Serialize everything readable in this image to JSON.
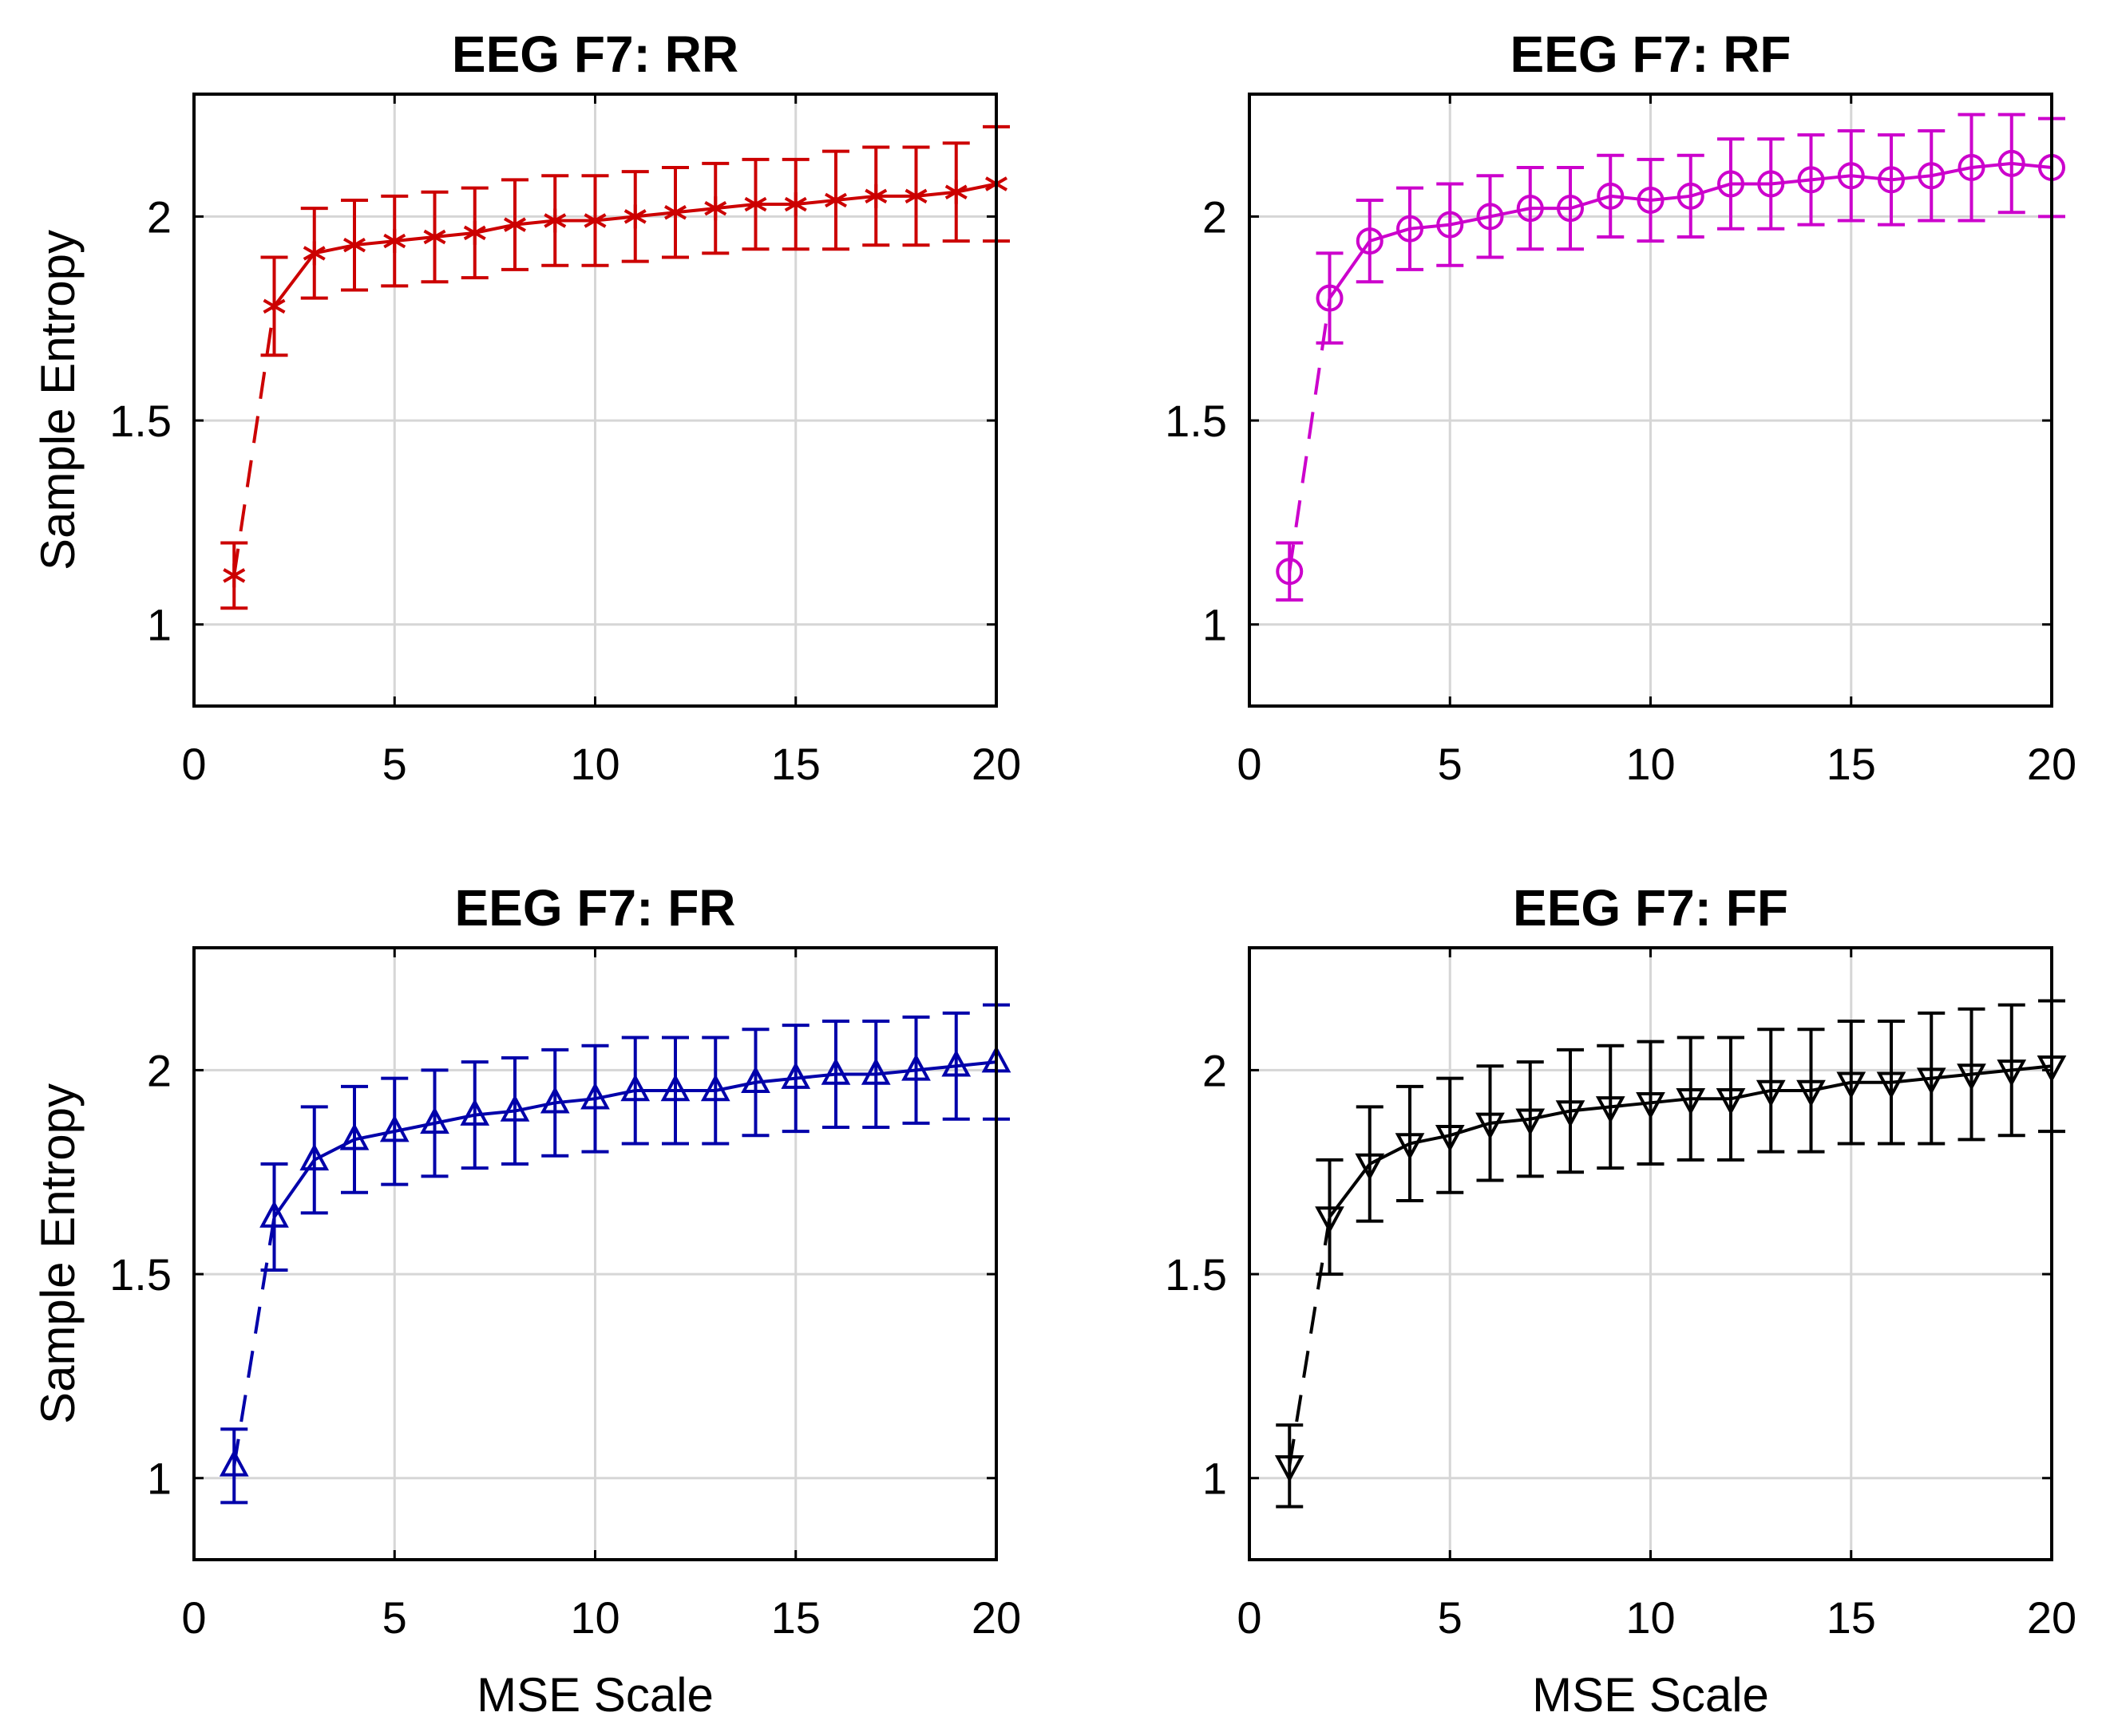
{
  "chart_data": [
    {
      "type": "line",
      "title": "EEG F7: RR",
      "xlabel": "",
      "ylabel": "Sample Entropy",
      "xlim": [
        0,
        20
      ],
      "ylim": [
        0.8,
        2.3
      ],
      "xticks": [
        0,
        5,
        10,
        15,
        20
      ],
      "yticks": [
        1,
        1.5,
        2
      ],
      "xtick_labels": [
        "0",
        "5",
        "10",
        "15",
        "20"
      ],
      "ytick_labels": [
        "1",
        "1.5",
        "2"
      ],
      "grid": true,
      "color": "#cc0000",
      "marker": "asterisk",
      "series": [
        {
          "x": [
            1,
            2,
            3,
            4,
            5,
            6,
            7,
            8,
            9,
            10,
            11,
            12,
            13,
            14,
            15,
            16,
            17,
            18,
            19,
            20
          ],
          "values": [
            1.12,
            1.78,
            1.91,
            1.93,
            1.94,
            1.95,
            1.96,
            1.98,
            1.99,
            1.99,
            2.0,
            2.01,
            2.02,
            2.03,
            2.03,
            2.04,
            2.05,
            2.05,
            2.06,
            2.08
          ],
          "error": [
            0.08,
            0.12,
            0.11,
            0.11,
            0.11,
            0.11,
            0.11,
            0.11,
            0.11,
            0.11,
            0.11,
            0.11,
            0.11,
            0.11,
            0.11,
            0.12,
            0.12,
            0.12,
            0.12,
            0.14
          ]
        }
      ]
    },
    {
      "type": "line",
      "title": "EEG F7: RF",
      "xlabel": "",
      "ylabel": "",
      "xlim": [
        0,
        20
      ],
      "ylim": [
        0.8,
        2.3
      ],
      "xticks": [
        0,
        5,
        10,
        15,
        20
      ],
      "yticks": [
        1,
        1.5,
        2
      ],
      "xtick_labels": [
        "0",
        "5",
        "10",
        "15",
        "20"
      ],
      "ytick_labels": [
        "1",
        "1.5",
        "2"
      ],
      "grid": true,
      "color": "#cc00cc",
      "marker": "circle-plus",
      "series": [
        {
          "x": [
            1,
            2,
            3,
            4,
            5,
            6,
            7,
            8,
            9,
            10,
            11,
            12,
            13,
            14,
            15,
            16,
            17,
            18,
            19,
            20
          ],
          "values": [
            1.13,
            1.8,
            1.94,
            1.97,
            1.98,
            2.0,
            2.02,
            2.02,
            2.05,
            2.04,
            2.05,
            2.08,
            2.08,
            2.09,
            2.1,
            2.09,
            2.1,
            2.12,
            2.13,
            2.12
          ],
          "error": [
            0.07,
            0.11,
            0.1,
            0.1,
            0.1,
            0.1,
            0.1,
            0.1,
            0.1,
            0.1,
            0.1,
            0.11,
            0.11,
            0.11,
            0.11,
            0.11,
            0.11,
            0.13,
            0.12,
            0.12
          ]
        }
      ]
    },
    {
      "type": "line",
      "title": "EEG F7: FR",
      "xlabel": "MSE Scale",
      "ylabel": "Sample Entropy",
      "xlim": [
        0,
        20
      ],
      "ylim": [
        0.8,
        2.3
      ],
      "xticks": [
        0,
        5,
        10,
        15,
        20
      ],
      "yticks": [
        1,
        1.5,
        2
      ],
      "xtick_labels": [
        "0",
        "5",
        "10",
        "15",
        "20"
      ],
      "ytick_labels": [
        "1",
        "1.5",
        "2"
      ],
      "grid": true,
      "color": "#0000aa",
      "marker": "triangle-up",
      "series": [
        {
          "x": [
            1,
            2,
            3,
            4,
            5,
            6,
            7,
            8,
            9,
            10,
            11,
            12,
            13,
            14,
            15,
            16,
            17,
            18,
            19,
            20
          ],
          "values": [
            1.03,
            1.64,
            1.78,
            1.83,
            1.85,
            1.87,
            1.89,
            1.9,
            1.92,
            1.93,
            1.95,
            1.95,
            1.95,
            1.97,
            1.98,
            1.99,
            1.99,
            2.0,
            2.01,
            2.02
          ],
          "error": [
            0.09,
            0.13,
            0.13,
            0.13,
            0.13,
            0.13,
            0.13,
            0.13,
            0.13,
            0.13,
            0.13,
            0.13,
            0.13,
            0.13,
            0.13,
            0.13,
            0.13,
            0.13,
            0.13,
            0.14
          ]
        }
      ]
    },
    {
      "type": "line",
      "title": "EEG F7: FF",
      "xlabel": "MSE Scale",
      "ylabel": "",
      "xlim": [
        0,
        20
      ],
      "ylim": [
        0.8,
        2.3
      ],
      "xticks": [
        0,
        5,
        10,
        15,
        20
      ],
      "yticks": [
        1,
        1.5,
        2
      ],
      "xtick_labels": [
        "0",
        "5",
        "10",
        "15",
        "20"
      ],
      "ytick_labels": [
        "1",
        "1.5",
        "2"
      ],
      "grid": true,
      "color": "#000000",
      "marker": "triangle-down",
      "series": [
        {
          "x": [
            1,
            2,
            3,
            4,
            5,
            6,
            7,
            8,
            9,
            10,
            11,
            12,
            13,
            14,
            15,
            16,
            17,
            18,
            19,
            20
          ],
          "values": [
            1.03,
            1.64,
            1.77,
            1.82,
            1.84,
            1.87,
            1.88,
            1.9,
            1.91,
            1.92,
            1.93,
            1.93,
            1.95,
            1.95,
            1.97,
            1.97,
            1.98,
            1.99,
            2.0,
            2.01
          ],
          "error": [
            0.1,
            0.14,
            0.14,
            0.14,
            0.14,
            0.14,
            0.14,
            0.15,
            0.15,
            0.15,
            0.15,
            0.15,
            0.15,
            0.15,
            0.15,
            0.15,
            0.16,
            0.16,
            0.16,
            0.16
          ]
        }
      ]
    }
  ]
}
